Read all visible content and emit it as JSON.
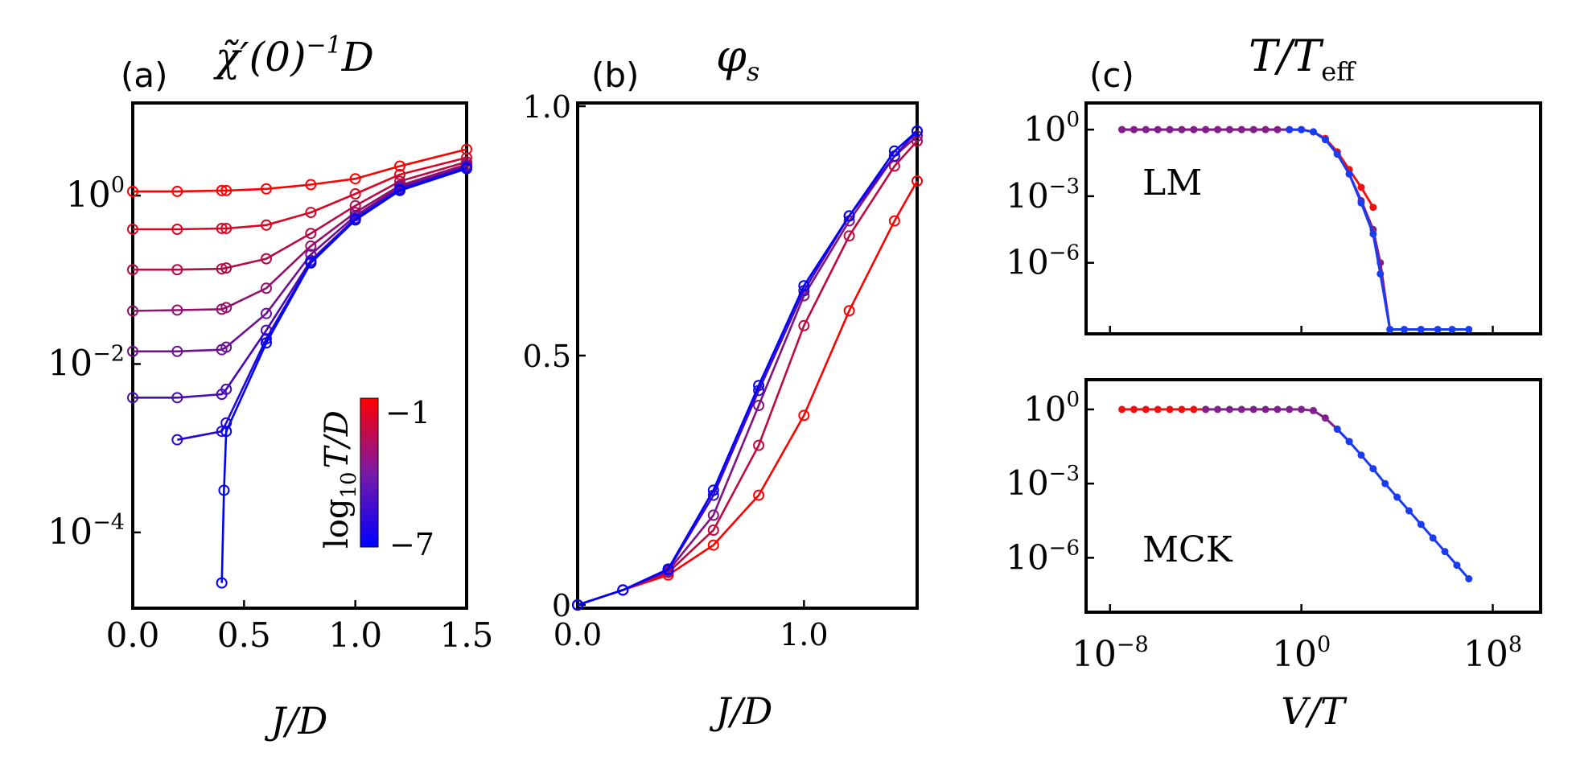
{
  "chart_data": [
    {
      "panel_label": "(a)",
      "title_main": "χ̃′(0)",
      "title_sup": "−1",
      "title_tail": "D",
      "type": "line",
      "xlabel": "J/D",
      "ylabel": "",
      "yscale": "log",
      "xlim": [
        0,
        1.5
      ],
      "ylim_log10": [
        -4.9,
        1.1
      ],
      "xticks": [
        {
          "v": 0,
          "label": "0.0"
        },
        {
          "v": 0.5,
          "label": "0.5"
        },
        {
          "v": 1.0,
          "label": "1.0"
        },
        {
          "v": 1.5,
          "label": "1.5"
        }
      ],
      "yticks": [
        {
          "v": 0,
          "base": "10",
          "exp": "0"
        },
        {
          "v": -2,
          "base": "10",
          "exp": "−2"
        },
        {
          "v": -4,
          "base": "10",
          "exp": "−4"
        }
      ],
      "colorbar": {
        "label": "log",
        "label_sub": "10",
        "label_tail": "T/D",
        "top_label": "−1",
        "bottom_label": "−7",
        "range": [
          -7,
          -1
        ]
      },
      "series": [
        {
          "name": "log10 T/D = -1",
          "x": [
            0,
            0.2,
            0.4,
            0.42,
            0.6,
            0.8,
            1.0,
            1.2,
            1.5
          ],
          "log10y": [
            0.05,
            0.05,
            0.06,
            0.06,
            0.08,
            0.13,
            0.2,
            0.35,
            0.55
          ]
        },
        {
          "name": "log10 T/D = -2",
          "x": [
            0,
            0.2,
            0.4,
            0.42,
            0.6,
            0.8,
            1.0,
            1.2,
            1.5
          ],
          "log10y": [
            -0.4,
            -0.4,
            -0.39,
            -0.39,
            -0.35,
            -0.2,
            0.02,
            0.25,
            0.45
          ]
        },
        {
          "name": "log10 T/D = -3",
          "x": [
            0,
            0.2,
            0.4,
            0.42,
            0.6,
            0.8,
            1.0,
            1.2,
            1.5
          ],
          "log10y": [
            -0.88,
            -0.88,
            -0.87,
            -0.86,
            -0.75,
            -0.45,
            -0.12,
            0.17,
            0.4
          ]
        },
        {
          "name": "log10 T/D = -4",
          "x": [
            0,
            0.2,
            0.4,
            0.42,
            0.6,
            0.8,
            1.0,
            1.2,
            1.5
          ],
          "log10y": [
            -1.37,
            -1.36,
            -1.35,
            -1.33,
            -1.1,
            -0.6,
            -0.2,
            0.12,
            0.37
          ]
        },
        {
          "name": "log10 T/D = -5",
          "x": [
            0,
            0.2,
            0.4,
            0.42,
            0.6,
            0.8,
            1.0,
            1.2,
            1.5
          ],
          "log10y": [
            -1.85,
            -1.85,
            -1.83,
            -1.8,
            -1.4,
            -0.7,
            -0.24,
            0.1,
            0.35
          ]
        },
        {
          "name": "log10 T/D = -6",
          "x": [
            0,
            0.2,
            0.4,
            0.42,
            0.6,
            0.8,
            1.0,
            1.2,
            1.5
          ],
          "log10y": [
            -2.4,
            -2.4,
            -2.36,
            -2.3,
            -1.6,
            -0.77,
            -0.27,
            0.08,
            0.34
          ]
        },
        {
          "name": "log10 T/D = -6.5",
          "x": [
            0.2,
            0.4,
            0.42,
            0.6,
            0.8,
            1.0,
            1.2,
            1.5
          ],
          "log10y": [
            -2.9,
            -2.8,
            -2.7,
            -1.7,
            -0.79,
            -0.28,
            0.07,
            0.33
          ]
        },
        {
          "name": "log10 T/D = -7",
          "x": [
            0.4,
            0.41,
            0.42,
            0.6,
            0.8,
            1.0,
            1.2,
            1.5
          ],
          "log10y": [
            -4.6,
            -3.5,
            -2.8,
            -1.75,
            -0.8,
            -0.29,
            0.06,
            0.32
          ]
        }
      ]
    },
    {
      "panel_label": "(b)",
      "title_main": "φ",
      "title_sub": "s",
      "type": "line",
      "xlabel": "J/D",
      "ylabel": "",
      "xlim": [
        0,
        1.5
      ],
      "ylim": [
        0,
        1.0
      ],
      "xticks": [
        {
          "v": 0,
          "label": "0.0"
        },
        {
          "v": 1.0,
          "label": "1.0"
        }
      ],
      "yticks": [
        {
          "v": 0,
          "label": "0"
        },
        {
          "v": 0.5,
          "label": "0.5"
        },
        {
          "v": 1.0,
          "label": "1.0"
        }
      ],
      "series": [
        {
          "name": "log10 T/D = -1",
          "x": [
            0,
            0.2,
            0.4,
            0.6,
            0.8,
            1.0,
            1.2,
            1.4,
            1.5
          ],
          "y": [
            0,
            0.03,
            0.06,
            0.12,
            0.22,
            0.38,
            0.59,
            0.77,
            0.85
          ]
        },
        {
          "name": "log10 T/D = -2",
          "x": [
            0,
            0.2,
            0.4,
            0.6,
            0.8,
            1.0,
            1.2,
            1.4,
            1.5
          ],
          "y": [
            0,
            0.03,
            0.065,
            0.15,
            0.32,
            0.56,
            0.74,
            0.88,
            0.93
          ]
        },
        {
          "name": "log10 T/D = -3",
          "x": [
            0,
            0.2,
            0.4,
            0.6,
            0.8,
            1.0,
            1.2,
            1.4,
            1.5
          ],
          "y": [
            0,
            0.03,
            0.068,
            0.18,
            0.4,
            0.62,
            0.77,
            0.9,
            0.94
          ]
        },
        {
          "name": "log10 T/D = -5",
          "x": [
            0,
            0.2,
            0.4,
            0.6,
            0.8,
            1.0,
            1.2,
            1.4,
            1.5
          ],
          "y": [
            0,
            0.03,
            0.07,
            0.22,
            0.43,
            0.63,
            0.78,
            0.9,
            0.95
          ]
        },
        {
          "name": "log10 T/D = -7",
          "x": [
            0,
            0.2,
            0.4,
            0.6,
            0.8,
            1.0,
            1.2,
            1.4,
            1.5
          ],
          "y": [
            0,
            0.03,
            0.072,
            0.23,
            0.44,
            0.64,
            0.78,
            0.91,
            0.95
          ]
        }
      ]
    },
    {
      "panel_label": "(c)",
      "title_main": "T/T",
      "title_sub": "eff",
      "type": "line",
      "xlabel": "V/T",
      "xscale": "log",
      "yscale": "log",
      "xlim_log10": [
        -9,
        10
      ],
      "xticks": [
        {
          "v": -8,
          "base": "10",
          "exp": "−8"
        },
        {
          "v": 0,
          "base": "10",
          "exp": "0"
        },
        {
          "v": 8,
          "base": "10",
          "exp": "8"
        }
      ],
      "subpanels": [
        {
          "name": "LM",
          "ylim_log10": [
            -9.2,
            1.2
          ],
          "yticks": [
            {
              "v": 0,
              "base": "10",
              "exp": "0"
            },
            {
              "v": -3,
              "base": "10",
              "exp": "−3"
            },
            {
              "v": -6,
              "base": "10",
              "exp": "−6"
            }
          ],
          "series": [
            {
              "name": "red",
              "log10x": [
                -7.5,
                -7,
                -6.5,
                -6,
                -5.5,
                -5,
                -4.5,
                -4,
                -3.5,
                -3,
                -2.5,
                -2,
                -1.5,
                -1,
                -0.5,
                0,
                0.5,
                1,
                1.5,
                2,
                2.5,
                3
              ],
              "log10y": [
                0,
                0,
                0,
                0,
                0,
                0,
                0,
                0,
                0,
                0,
                0,
                0,
                0,
                0,
                0,
                0,
                -0.1,
                -0.4,
                -1,
                -1.8,
                -2.6,
                -3.5
              ]
            },
            {
              "name": "purple",
              "log10x": [
                -7.5,
                -7,
                -6.5,
                -6,
                -5.5,
                -5,
                -4.5,
                -4,
                -3.5,
                -3,
                -2.5,
                -2,
                -1.5,
                -1,
                -0.5,
                0,
                0.5,
                1,
                1.5,
                2,
                2.5,
                3,
                3.3,
                3.7
              ],
              "log10y": [
                0,
                0,
                0,
                0,
                0,
                0,
                0,
                0,
                0,
                0,
                0,
                0,
                0,
                0,
                0,
                0,
                -0.1,
                -0.45,
                -1.1,
                -2,
                -3.2,
                -4.5,
                -6,
                -9
              ]
            },
            {
              "name": "blue",
              "log10x": [
                -0.5,
                0,
                0.5,
                1,
                1.5,
                2,
                2.5,
                3,
                3.3,
                3.7,
                4.3,
                5,
                5.7,
                6.3,
                7
              ],
              "log10y": [
                0,
                0,
                -0.1,
                -0.45,
                -1.1,
                -2,
                -3.3,
                -4.7,
                -6.5,
                -9,
                -9,
                -9,
                -9,
                -9,
                -9
              ]
            }
          ]
        },
        {
          "name": "MCK",
          "ylim_log10": [
            -8.2,
            1.2
          ],
          "yticks": [
            {
              "v": 0,
              "base": "10",
              "exp": "0"
            },
            {
              "v": -3,
              "base": "10",
              "exp": "−3"
            },
            {
              "v": -6,
              "base": "10",
              "exp": "−6"
            }
          ],
          "series": [
            {
              "name": "red",
              "log10x": [
                -7.5,
                -7,
                -6.5,
                -6,
                -5.5,
                -5,
                -4.5,
                -4
              ],
              "log10y": [
                0,
                0,
                0,
                0,
                0,
                0,
                0,
                0
              ]
            },
            {
              "name": "purple",
              "log10x": [
                -4,
                -3.5,
                -3,
                -2.5,
                -2,
                -1.5,
                -1,
                -0.5,
                0,
                0.5,
                1,
                1.5,
                2
              ],
              "log10y": [
                0,
                0,
                0,
                0,
                0,
                0,
                0,
                0,
                0,
                -0.05,
                -0.35,
                -0.8,
                -1.3
              ]
            },
            {
              "name": "blue",
              "log10x": [
                1.5,
                2,
                2.5,
                3,
                3.5,
                4,
                4.5,
                5,
                5.5,
                6,
                6.5,
                7
              ],
              "log10y": [
                -0.8,
                -1.3,
                -1.85,
                -2.4,
                -3,
                -3.55,
                -4.1,
                -4.65,
                -5.2,
                -5.75,
                -6.3,
                -6.85
              ]
            }
          ]
        }
      ]
    }
  ]
}
